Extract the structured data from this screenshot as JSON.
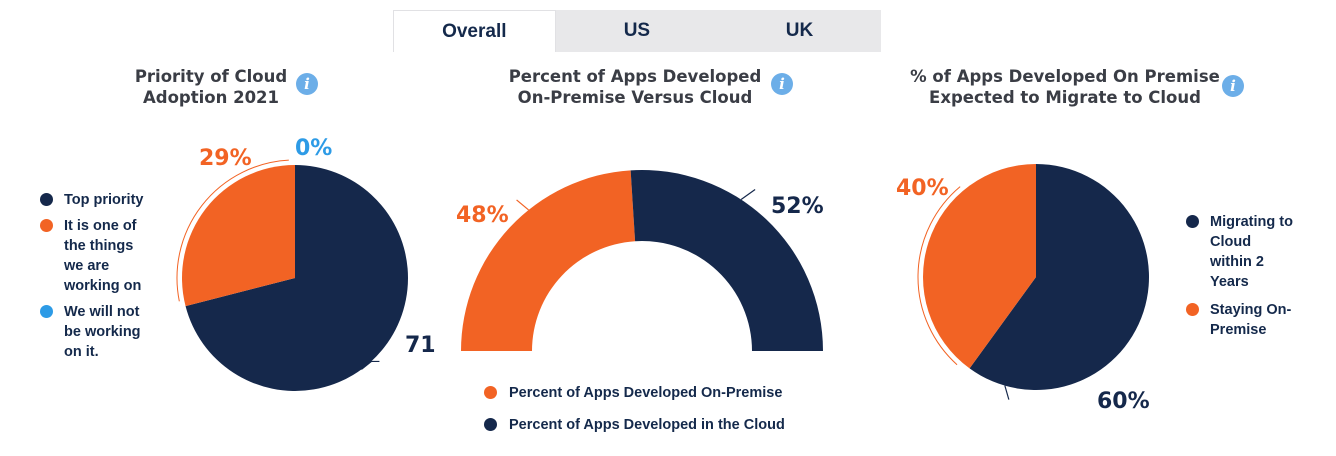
{
  "tabs": [
    {
      "label": "Overall",
      "active": true
    },
    {
      "label": "US",
      "active": false
    },
    {
      "label": "UK",
      "active": false
    }
  ],
  "icons": {
    "info": "info-icon"
  },
  "colors": {
    "navy": "#15284b",
    "orange": "#f26324",
    "blue": "#2d9be6",
    "tab_bg": "#e8e8ea"
  },
  "chart_data": [
    {
      "type": "pie",
      "title_lines": [
        "Priority of Cloud",
        "Adoption 2021"
      ],
      "slices": [
        {
          "label_lines": [
            "Top priority"
          ],
          "value": 71,
          "value_label": "71",
          "color": "#15284b"
        },
        {
          "label_lines": [
            "It is one of",
            "the things",
            "we are",
            "working on"
          ],
          "value": 29,
          "value_label": "29%",
          "color": "#f26324"
        },
        {
          "label_lines": [
            "We will not",
            "be working",
            "on it."
          ],
          "value": 0,
          "value_label": "0%",
          "color": "#2d9be6"
        }
      ],
      "legend_position": "left"
    },
    {
      "type": "pie",
      "variant": "semi-donut",
      "title_lines": [
        "Percent of Apps Developed",
        "On-Premise Versus Cloud"
      ],
      "slices": [
        {
          "label": "Percent of Apps Developed On-Premise",
          "value": 48,
          "value_label": "48%",
          "color": "#f26324"
        },
        {
          "label": "Percent of Apps Developed in the Cloud",
          "value": 52,
          "value_label": "52%",
          "color": "#15284b"
        }
      ],
      "legend_position": "bottom"
    },
    {
      "type": "pie",
      "title_lines": [
        "% of Apps Developed On Premise",
        "Expected to Migrate to Cloud"
      ],
      "slices": [
        {
          "label_lines": [
            "Migrating to",
            "Cloud",
            "within 2",
            "Years"
          ],
          "value": 60,
          "value_label": "60%",
          "color": "#15284b"
        },
        {
          "label_lines": [
            "Staying On-",
            "Premise"
          ],
          "value": 40,
          "value_label": "40%",
          "color": "#f26324"
        }
      ],
      "legend_position": "right"
    }
  ]
}
